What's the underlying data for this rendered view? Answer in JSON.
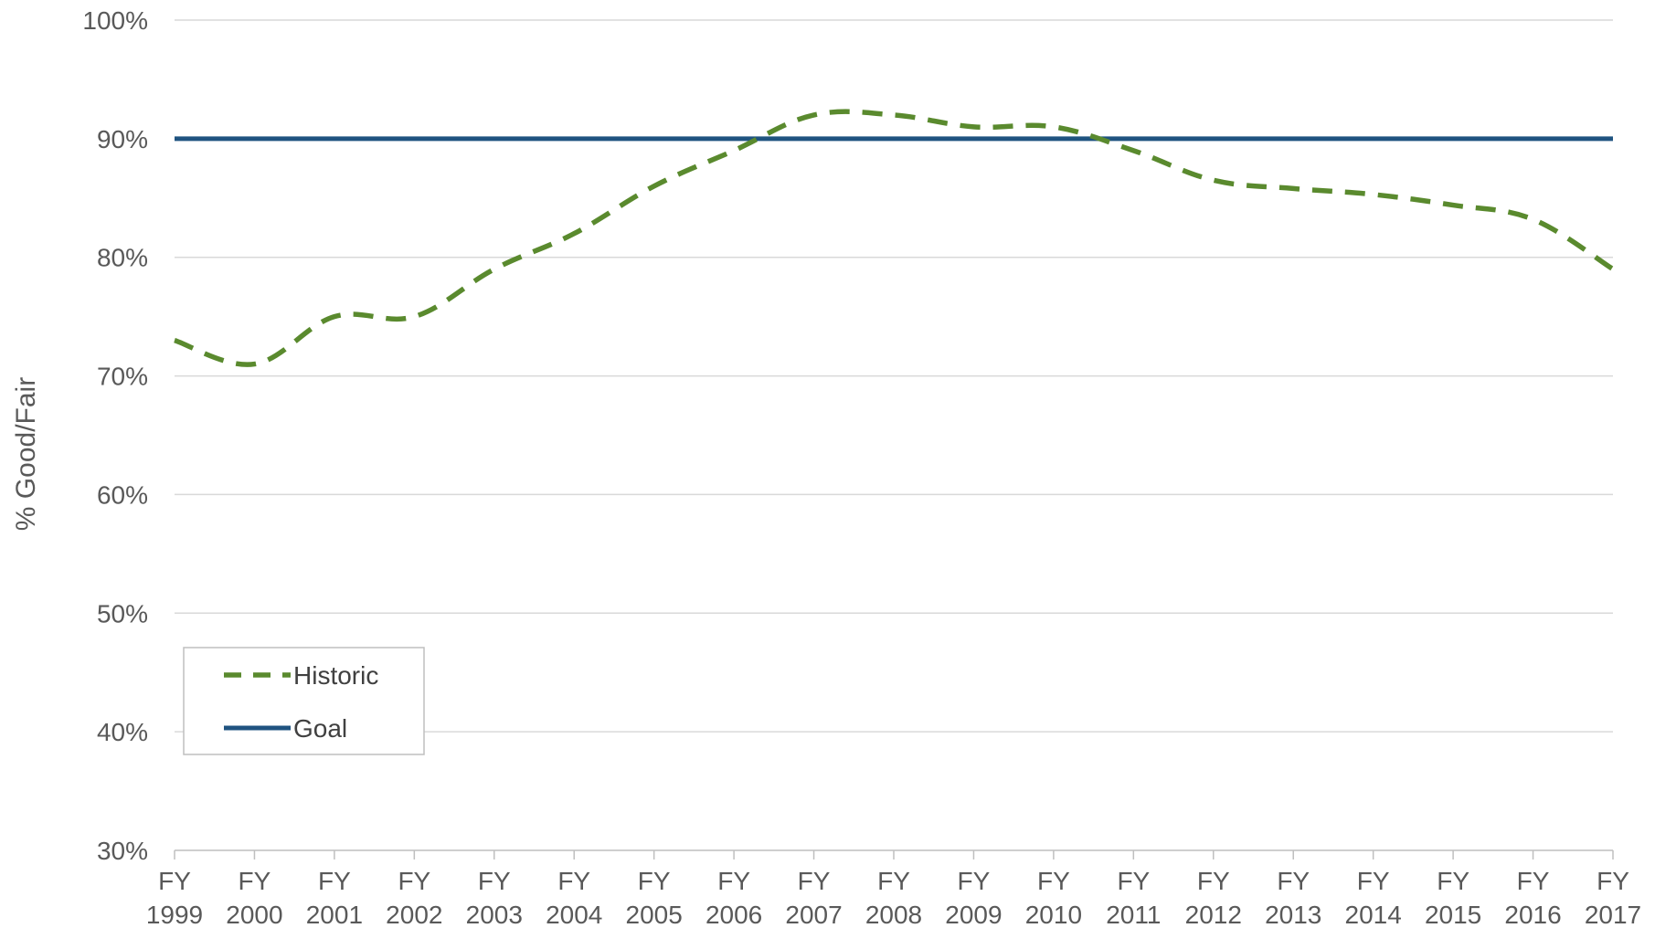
{
  "chart_data": {
    "type": "line",
    "title": "",
    "xlabel": "",
    "ylabel": "% Good/Fair",
    "ylim": [
      30,
      100
    ],
    "y_ticks": [
      30,
      40,
      50,
      60,
      70,
      80,
      90,
      100
    ],
    "y_tick_suffix": "%",
    "grid": true,
    "legend_position": "bottom-left",
    "categories": [
      {
        "line1": "FY",
        "line2": "1999"
      },
      {
        "line1": "FY",
        "line2": "2000"
      },
      {
        "line1": "FY",
        "line2": "2001"
      },
      {
        "line1": "FY",
        "line2": "2002"
      },
      {
        "line1": "FY",
        "line2": "2003"
      },
      {
        "line1": "FY",
        "line2": "2004"
      },
      {
        "line1": "FY",
        "line2": "2005"
      },
      {
        "line1": "FY",
        "line2": "2006"
      },
      {
        "line1": "FY",
        "line2": "2007"
      },
      {
        "line1": "FY",
        "line2": "2008"
      },
      {
        "line1": "FY",
        "line2": "2009"
      },
      {
        "line1": "FY",
        "line2": "2010"
      },
      {
        "line1": "FY",
        "line2": "2011"
      },
      {
        "line1": "FY",
        "line2": "2012"
      },
      {
        "line1": "FY",
        "line2": "2013"
      },
      {
        "line1": "FY",
        "line2": "2014"
      },
      {
        "line1": "FY",
        "line2": "2015"
      },
      {
        "line1": "FY",
        "line2": "2016"
      },
      {
        "line1": "FY",
        "line2": "2017"
      }
    ],
    "series": [
      {
        "name": "Historic",
        "style": "dashed",
        "color": "#5a8a2e",
        "values": [
          73,
          71,
          75,
          75,
          79,
          82,
          86,
          89,
          92,
          92,
          91,
          91,
          89,
          86.5,
          85.8,
          85.3,
          84.4,
          83.2,
          79
        ]
      },
      {
        "name": "Goal",
        "style": "solid",
        "color": "#1f5380",
        "values": [
          90,
          90,
          90,
          90,
          90,
          90,
          90,
          90,
          90,
          90,
          90,
          90,
          90,
          90,
          90,
          90,
          90,
          90,
          90
        ]
      }
    ],
    "colors": {
      "gridline": "#d9d9d9",
      "axis": "#bfbfbf",
      "text": "#595959",
      "legend_border": "#bfbfbf"
    }
  }
}
